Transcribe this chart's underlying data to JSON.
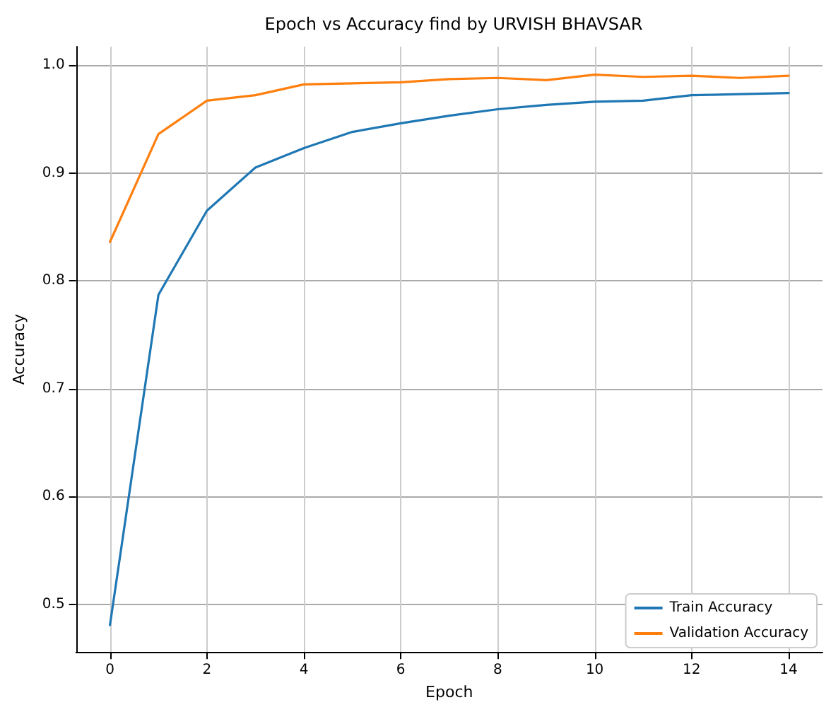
{
  "chart_data": {
    "type": "line",
    "title": "Epoch vs Accuracy find by URVISH BHAVSAR",
    "xlabel": "Epoch",
    "ylabel": "Accuracy",
    "x": [
      0,
      1,
      2,
      3,
      4,
      5,
      6,
      7,
      8,
      9,
      10,
      11,
      12,
      13,
      14
    ],
    "series": [
      {
        "name": "Train Accuracy",
        "color": "#1f77b4",
        "values": [
          0.481,
          0.787,
          0.865,
          0.905,
          0.923,
          0.938,
          0.946,
          0.953,
          0.959,
          0.963,
          0.966,
          0.967,
          0.972,
          0.973,
          0.974
        ]
      },
      {
        "name": "Validation Accuracy",
        "color": "#ff7f0e",
        "values": [
          0.836,
          0.936,
          0.967,
          0.972,
          0.982,
          0.983,
          0.984,
          0.987,
          0.988,
          0.986,
          0.991,
          0.989,
          0.99,
          0.988,
          0.99
        ]
      }
    ],
    "xlim": [
      -0.7,
      14.7
    ],
    "xticks": [
      0,
      2,
      4,
      6,
      8,
      10,
      12,
      14
    ],
    "ylim": [
      0.456,
      1.017
    ],
    "yticks": [
      0.5,
      0.6,
      0.7,
      0.8,
      0.9,
      {
        "value": 1,
        "label": "1.0"
      }
    ],
    "grid": true,
    "legend": "bottom right",
    "marker": "none",
    "line_style": "solid"
  }
}
